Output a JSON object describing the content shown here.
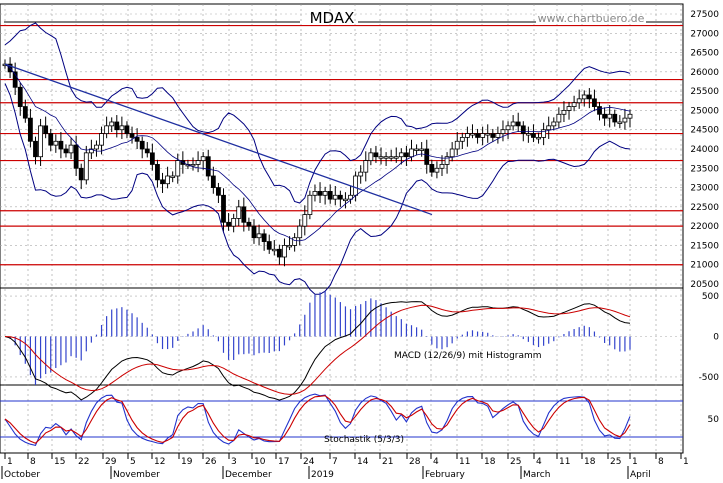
{
  "title": "MDAX",
  "watermark": "www.chartbuero.de",
  "chart_data": [
    {
      "type": "candlestick",
      "name": "price-panel",
      "ylim": [
        20500,
        27500
      ],
      "yticks": [
        20500,
        21000,
        21500,
        22000,
        22500,
        23000,
        23500,
        24000,
        24500,
        25000,
        25500,
        26000,
        26500,
        27000,
        27500
      ],
      "horizontal_levels": [
        21000,
        22000,
        22400,
        23700,
        24400,
        25200,
        25800,
        27200
      ],
      "trendline": {
        "from": {
          "x": "Oct 1",
          "y": 26200
        },
        "to": {
          "x": "Jan 29",
          "y": 22300
        }
      },
      "close_series": [
        26200,
        26000,
        25600,
        25100,
        24800,
        24200,
        23800,
        24600,
        24400,
        24100,
        24200,
        24000,
        23900,
        24100,
        23500,
        23200,
        23900,
        24000,
        24100,
        24400,
        24600,
        24700,
        24500,
        24600,
        24400,
        24300,
        24200,
        24000,
        23900,
        23600,
        23200,
        23100,
        23300,
        23300,
        23700,
        23600,
        23600,
        23600,
        23700,
        23800,
        23300,
        23000,
        22800,
        22100,
        22000,
        22200,
        22500,
        22100,
        22000,
        21700,
        21800,
        21600,
        21400,
        21400,
        21200,
        21500,
        21500,
        21700,
        22000,
        22300,
        22800,
        22900,
        22800,
        22900,
        22700,
        22800,
        22700,
        22700,
        22800,
        23300,
        23400,
        23700,
        23900,
        23800,
        23800,
        23800,
        23800,
        23800,
        23900,
        23800,
        24000,
        24000,
        24000,
        23600,
        23400,
        23500,
        23600,
        23800,
        24000,
        24200,
        24300,
        24400,
        24400,
        24300,
        24400,
        24400,
        24300,
        24400,
        24500,
        24600,
        24700,
        24600,
        24400,
        24400,
        24300,
        24300,
        24500,
        24600,
        24700,
        24900,
        25000,
        25100,
        25200,
        25300,
        25400,
        25300,
        25100,
        24900,
        24800,
        24900,
        24700,
        24700,
        24800,
        24900
      ]
    },
    {
      "type": "macd",
      "name": "macd-panel",
      "label": "MACD (12/26/9) mit Histogramm",
      "ylim": [
        -600,
        600
      ],
      "yticks": [
        -500,
        0,
        500
      ]
    },
    {
      "type": "stochastic",
      "name": "stochastic-panel",
      "label": "Stochastik (5/3/3)",
      "ylim": [
        0,
        100
      ],
      "yticks": [
        50
      ],
      "levels": [
        20,
        80
      ]
    }
  ],
  "x_axis": {
    "day_labels": [
      "1",
      "8",
      "15",
      "22",
      "29",
      "5",
      "12",
      "19",
      "26",
      "3",
      "10",
      "17",
      "24",
      "7",
      "14",
      "21",
      "28",
      "4",
      "11",
      "18",
      "25",
      "4",
      "11",
      "18",
      "25",
      "1",
      "8",
      "1"
    ],
    "month_labels": [
      "October",
      "November",
      "December",
      "2019",
      "February",
      "March",
      "April"
    ]
  },
  "colors": {
    "resistance": "#cc0000",
    "bollinger": "#000080",
    "trendline": "#1f2fa0",
    "candle": "#000000",
    "macd_line": "#000000",
    "signal_line": "#cc0000",
    "histogram": "#3344cc",
    "stoch_k": "#2233cc",
    "stoch_d": "#cc0000",
    "stoch_band": "#2233cc"
  }
}
